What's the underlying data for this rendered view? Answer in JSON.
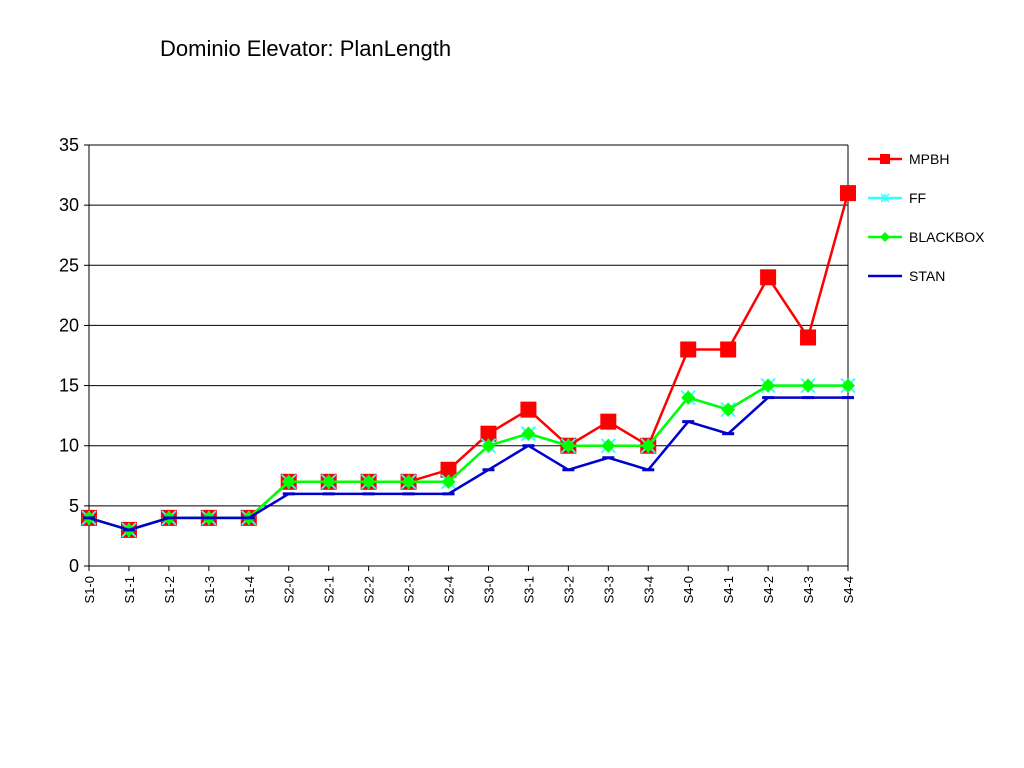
{
  "chart_data": {
    "type": "line",
    "title": "Dominio Elevator: PlanLength",
    "xlabel": "",
    "ylabel": "",
    "ylim": [
      0,
      35
    ],
    "yticks": [
      0,
      5,
      10,
      15,
      20,
      25,
      30,
      35
    ],
    "grid": "horizontal",
    "legend": "right",
    "categories": [
      "S1-0",
      "S1-1",
      "S1-2",
      "S1-3",
      "S1-4",
      "S2-0",
      "S2-1",
      "S2-2",
      "S2-3",
      "S2-4",
      "S3-0",
      "S3-1",
      "S3-2",
      "S3-3",
      "S3-4",
      "S4-0",
      "S4-1",
      "S4-2",
      "S4-3",
      "S4-4"
    ],
    "series": [
      {
        "name": "MPBH",
        "color": "#ff0000",
        "marker": "square",
        "values": [
          4,
          3,
          4,
          4,
          4,
          7,
          7,
          7,
          7,
          8,
          11,
          13,
          10,
          12,
          10,
          18,
          18,
          24,
          19,
          31
        ]
      },
      {
        "name": "FF",
        "color": "#33ffff",
        "marker": "asterisk",
        "values": [
          4,
          3,
          4,
          4,
          4,
          7,
          7,
          7,
          7,
          7,
          10,
          11,
          10,
          10,
          10,
          14,
          13,
          15,
          15,
          15
        ]
      },
      {
        "name": "BLACKBOX",
        "color": "#00ff00",
        "marker": "diamond",
        "values": [
          4,
          3,
          4,
          4,
          4,
          7,
          7,
          7,
          7,
          7,
          10,
          11,
          10,
          10,
          10,
          14,
          13,
          15,
          15,
          15
        ]
      },
      {
        "name": "STAN",
        "color": "#0000cc",
        "marker": "dash",
        "values": [
          4,
          3,
          4,
          4,
          4,
          6,
          6,
          6,
          6,
          6,
          8,
          10,
          8,
          9,
          8,
          12,
          11,
          14,
          14,
          14
        ]
      }
    ]
  }
}
